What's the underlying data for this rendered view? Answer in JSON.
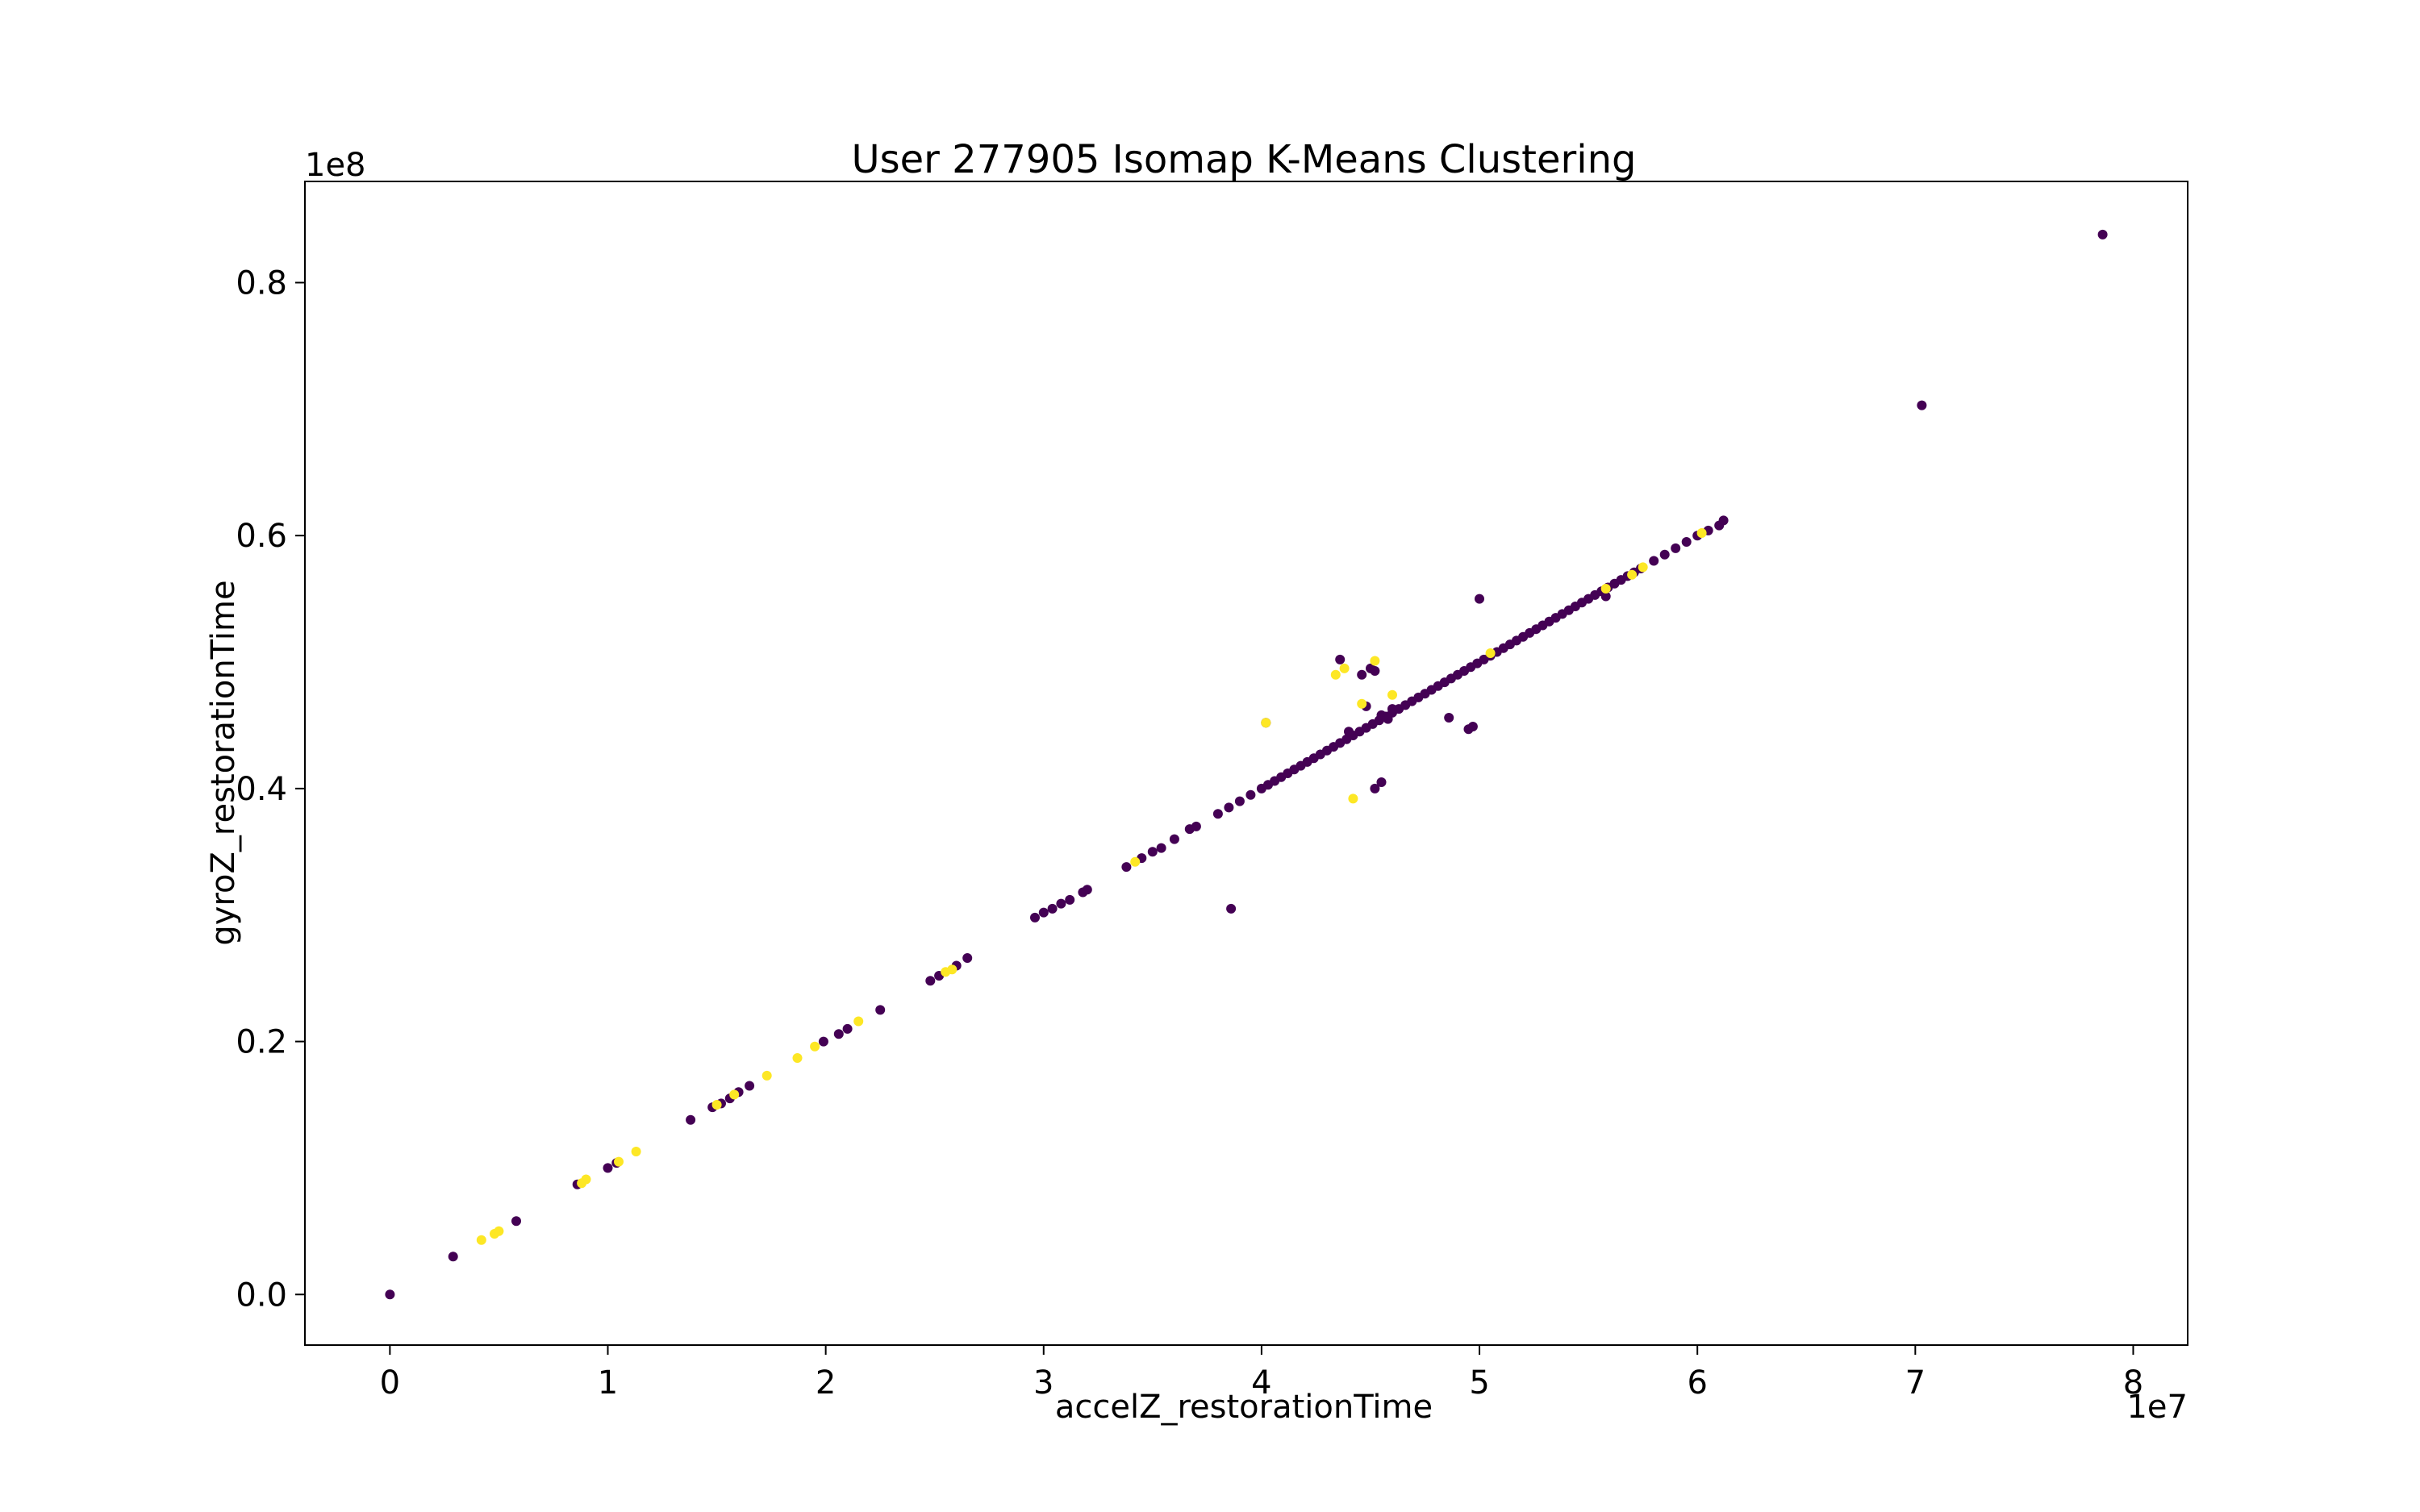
{
  "chart_data": {
    "type": "scatter",
    "title": "User 277905 Isomap K-Means Clustering",
    "xlabel": "accelZ_restorationTime",
    "ylabel": "gyroZ_restorationTime",
    "x_offset_label": "1e7",
    "y_offset_label": "1e8",
    "xlim": [
      -0.39,
      8.25
    ],
    "ylim": [
      -0.04,
      0.88
    ],
    "x_ticks": [
      0,
      1,
      2,
      3,
      4,
      5,
      6,
      7,
      8
    ],
    "x_tick_labels": [
      "0",
      "1",
      "2",
      "3",
      "4",
      "5",
      "6",
      "7",
      "8"
    ],
    "y_ticks": [
      0.0,
      0.2,
      0.4,
      0.6,
      0.8
    ],
    "y_tick_labels": [
      "0.0",
      "0.2",
      "0.4",
      "0.6",
      "0.8"
    ],
    "grid": false,
    "legend": "none",
    "colors": {
      "cluster_0": "#440154",
      "cluster_1": "#fde725"
    },
    "series": [
      {
        "color": "#440154",
        "points": [
          [
            0.0,
            0.0
          ],
          [
            0.29,
            0.03
          ],
          [
            0.58,
            0.058
          ],
          [
            0.86,
            0.087
          ],
          [
            1.0,
            0.1
          ],
          [
            1.04,
            0.104
          ],
          [
            1.38,
            0.138
          ],
          [
            1.48,
            0.148
          ],
          [
            1.52,
            0.151
          ],
          [
            1.56,
            0.155
          ],
          [
            1.6,
            0.16
          ],
          [
            1.65,
            0.165
          ],
          [
            1.99,
            0.2
          ],
          [
            2.06,
            0.206
          ],
          [
            2.1,
            0.21
          ],
          [
            2.25,
            0.225
          ],
          [
            2.48,
            0.248
          ],
          [
            2.52,
            0.252
          ],
          [
            2.6,
            0.26
          ],
          [
            2.65,
            0.266
          ],
          [
            2.96,
            0.298
          ],
          [
            3.0,
            0.302
          ],
          [
            3.04,
            0.305
          ],
          [
            3.08,
            0.309
          ],
          [
            3.12,
            0.312
          ],
          [
            3.18,
            0.318
          ],
          [
            3.2,
            0.32
          ],
          [
            3.38,
            0.338
          ],
          [
            3.45,
            0.345
          ],
          [
            3.5,
            0.35
          ],
          [
            3.54,
            0.353
          ],
          [
            3.6,
            0.36
          ],
          [
            3.67,
            0.368
          ],
          [
            3.7,
            0.37
          ],
          [
            3.8,
            0.38
          ],
          [
            3.85,
            0.385
          ],
          [
            3.9,
            0.39
          ],
          [
            3.95,
            0.395
          ],
          [
            3.86,
            0.305
          ],
          [
            4.0,
            0.4
          ],
          [
            4.03,
            0.403
          ],
          [
            4.06,
            0.406
          ],
          [
            4.09,
            0.409
          ],
          [
            4.12,
            0.412
          ],
          [
            4.15,
            0.415
          ],
          [
            4.18,
            0.418
          ],
          [
            4.21,
            0.421
          ],
          [
            4.24,
            0.424
          ],
          [
            4.27,
            0.427
          ],
          [
            4.3,
            0.43
          ],
          [
            4.33,
            0.433
          ],
          [
            4.36,
            0.436
          ],
          [
            4.39,
            0.439
          ],
          [
            4.42,
            0.442
          ],
          [
            4.45,
            0.445
          ],
          [
            4.48,
            0.448
          ],
          [
            4.51,
            0.451
          ],
          [
            4.54,
            0.454
          ],
          [
            4.57,
            0.457
          ],
          [
            4.6,
            0.46
          ],
          [
            4.63,
            0.463
          ],
          [
            4.66,
            0.466
          ],
          [
            4.69,
            0.469
          ],
          [
            4.72,
            0.472
          ],
          [
            4.75,
            0.475
          ],
          [
            4.78,
            0.478
          ],
          [
            4.81,
            0.481
          ],
          [
            4.84,
            0.484
          ],
          [
            4.87,
            0.487
          ],
          [
            4.9,
            0.49
          ],
          [
            4.93,
            0.493
          ],
          [
            4.96,
            0.496
          ],
          [
            4.99,
            0.499
          ],
          [
            5.02,
            0.502
          ],
          [
            5.05,
            0.505
          ],
          [
            5.08,
            0.508
          ],
          [
            5.11,
            0.511
          ],
          [
            5.14,
            0.514
          ],
          [
            5.17,
            0.517
          ],
          [
            5.2,
            0.52
          ],
          [
            5.23,
            0.523
          ],
          [
            5.26,
            0.526
          ],
          [
            5.29,
            0.529
          ],
          [
            5.32,
            0.532
          ],
          [
            5.35,
            0.535
          ],
          [
            5.38,
            0.538
          ],
          [
            5.41,
            0.541
          ],
          [
            5.44,
            0.544
          ],
          [
            5.47,
            0.547
          ],
          [
            5.5,
            0.55
          ],
          [
            5.53,
            0.553
          ],
          [
            5.56,
            0.556
          ],
          [
            5.59,
            0.559
          ],
          [
            5.62,
            0.562
          ],
          [
            5.65,
            0.565
          ],
          [
            5.68,
            0.568
          ],
          [
            5.71,
            0.571
          ],
          [
            5.74,
            0.574
          ],
          [
            5.8,
            0.58
          ],
          [
            5.85,
            0.585
          ],
          [
            5.9,
            0.59
          ],
          [
            5.95,
            0.595
          ],
          [
            6.0,
            0.6
          ],
          [
            6.05,
            0.604
          ],
          [
            6.1,
            0.608
          ],
          [
            6.12,
            0.612
          ],
          [
            4.02,
            0.452
          ],
          [
            4.36,
            0.502
          ],
          [
            4.46,
            0.49
          ],
          [
            4.5,
            0.495
          ],
          [
            4.52,
            0.493
          ],
          [
            4.4,
            0.445
          ],
          [
            4.55,
            0.458
          ],
          [
            4.58,
            0.455
          ],
          [
            4.52,
            0.4
          ],
          [
            4.55,
            0.405
          ],
          [
            4.86,
            0.456
          ],
          [
            4.95,
            0.447
          ],
          [
            4.97,
            0.449
          ],
          [
            5.0,
            0.55
          ],
          [
            4.6,
            0.463
          ],
          [
            4.48,
            0.465
          ],
          [
            5.58,
            0.552
          ],
          [
            7.03,
            0.703
          ],
          [
            7.86,
            0.838
          ]
        ]
      },
      {
        "color": "#fde725",
        "points": [
          [
            0.42,
            0.043
          ],
          [
            0.48,
            0.048
          ],
          [
            0.5,
            0.05
          ],
          [
            0.88,
            0.088
          ],
          [
            0.9,
            0.091
          ],
          [
            1.05,
            0.105
          ],
          [
            1.13,
            0.113
          ],
          [
            1.5,
            0.15
          ],
          [
            1.58,
            0.158
          ],
          [
            1.73,
            0.173
          ],
          [
            1.87,
            0.187
          ],
          [
            1.95,
            0.196
          ],
          [
            2.15,
            0.216
          ],
          [
            2.55,
            0.255
          ],
          [
            2.58,
            0.257
          ],
          [
            3.42,
            0.342
          ],
          [
            4.02,
            0.452
          ],
          [
            4.34,
            0.49
          ],
          [
            4.38,
            0.495
          ],
          [
            4.46,
            0.467
          ],
          [
            4.52,
            0.501
          ],
          [
            4.42,
            0.392
          ],
          [
            4.6,
            0.474
          ],
          [
            5.05,
            0.507
          ],
          [
            5.58,
            0.558
          ],
          [
            5.7,
            0.569
          ],
          [
            5.75,
            0.575
          ],
          [
            6.02,
            0.602
          ]
        ]
      }
    ]
  }
}
